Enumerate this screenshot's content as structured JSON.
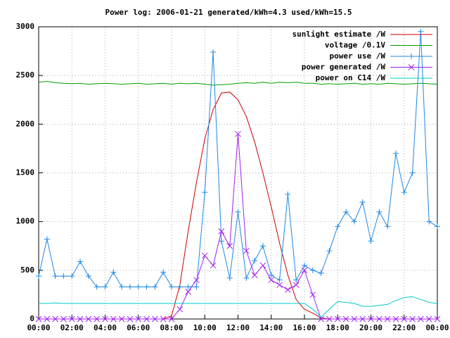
{
  "chart_data": {
    "type": "line",
    "title": "Power log: 2006-01-21 generated/kWh=4.3 used/kWh=15.5",
    "x": [
      "00:00",
      "00:30",
      "01:00",
      "01:30",
      "02:00",
      "02:30",
      "03:00",
      "03:30",
      "04:00",
      "04:30",
      "05:00",
      "05:30",
      "06:00",
      "06:30",
      "07:00",
      "07:30",
      "08:00",
      "08:30",
      "09:00",
      "09:30",
      "10:00",
      "10:30",
      "11:00",
      "11:30",
      "12:00",
      "12:30",
      "13:00",
      "13:30",
      "14:00",
      "14:30",
      "15:00",
      "15:30",
      "16:00",
      "16:30",
      "17:00",
      "17:30",
      "18:00",
      "18:30",
      "19:00",
      "19:30",
      "20:00",
      "20:30",
      "21:00",
      "21:30",
      "22:00",
      "22:30",
      "23:00",
      "23:30",
      "24:00"
    ],
    "series": [
      {
        "name": "sunlight estimate /W",
        "color": "#cc0000",
        "marker": "none",
        "values": [
          0,
          0,
          0,
          0,
          0,
          0,
          0,
          0,
          0,
          0,
          0,
          0,
          0,
          0,
          0,
          0,
          30,
          350,
          900,
          1400,
          1850,
          2150,
          2320,
          2330,
          2250,
          2080,
          1820,
          1500,
          1150,
          780,
          450,
          200,
          100,
          60,
          10,
          0,
          0,
          0,
          0,
          0,
          0,
          0,
          0,
          0,
          0,
          0,
          0,
          0,
          0
        ]
      },
      {
        "name": "voltage /0.1V",
        "color": "#00a000",
        "marker": "none",
        "values": [
          2430,
          2440,
          2425,
          2420,
          2415,
          2420,
          2410,
          2415,
          2420,
          2415,
          2410,
          2415,
          2420,
          2410,
          2415,
          2420,
          2410,
          2420,
          2415,
          2420,
          2410,
          2400,
          2405,
          2410,
          2420,
          2425,
          2420,
          2430,
          2420,
          2430,
          2425,
          2430,
          2420,
          2420,
          2410,
          2415,
          2410,
          2415,
          2420,
          2410,
          2415,
          2410,
          2420,
          2415,
          2410,
          2415,
          2420,
          2415,
          2410
        ]
      },
      {
        "name": "power use /W",
        "color": "#1e88e5",
        "marker": "plus",
        "values": [
          440,
          820,
          440,
          440,
          440,
          590,
          440,
          330,
          330,
          480,
          330,
          330,
          330,
          330,
          330,
          480,
          330,
          330,
          330,
          330,
          1300,
          2740,
          800,
          420,
          1100,
          420,
          600,
          750,
          450,
          400,
          1280,
          400,
          550,
          500,
          470,
          700,
          950,
          1100,
          1000,
          1200,
          800,
          1100,
          950,
          1700,
          1300,
          1500,
          2950,
          1000,
          950
        ]
      },
      {
        "name": "power generated /W",
        "color": "#a020f0",
        "marker": "cross",
        "values": [
          0,
          0,
          0,
          0,
          0,
          0,
          0,
          0,
          0,
          0,
          0,
          0,
          0,
          0,
          0,
          0,
          0,
          100,
          280,
          400,
          650,
          550,
          900,
          750,
          1900,
          700,
          450,
          550,
          400,
          350,
          300,
          350,
          500,
          250,
          0,
          0,
          0,
          0,
          0,
          0,
          0,
          0,
          0,
          0,
          0,
          0,
          0,
          0,
          0
        ]
      },
      {
        "name": "power on C14 /W",
        "color": "#00cccc",
        "marker": "none",
        "values": [
          160,
          160,
          165,
          160,
          160,
          160,
          160,
          160,
          160,
          160,
          160,
          160,
          160,
          160,
          160,
          160,
          160,
          160,
          160,
          160,
          160,
          160,
          160,
          160,
          160,
          160,
          160,
          160,
          160,
          160,
          160,
          160,
          160,
          100,
          20,
          100,
          180,
          170,
          160,
          130,
          130,
          140,
          150,
          190,
          220,
          230,
          200,
          170,
          160
        ]
      }
    ],
    "xlim": [
      "00:00",
      "24:00"
    ],
    "xticks": [
      "00:00",
      "02:00",
      "04:00",
      "06:00",
      "08:00",
      "10:00",
      "12:00",
      "14:00",
      "16:00",
      "18:00",
      "20:00",
      "22:00",
      "00:00"
    ],
    "ylim": [
      0,
      3000
    ],
    "yticks": [
      0,
      500,
      1000,
      1500,
      2000,
      2500,
      3000
    ],
    "grid": true,
    "legend": "top-right"
  }
}
